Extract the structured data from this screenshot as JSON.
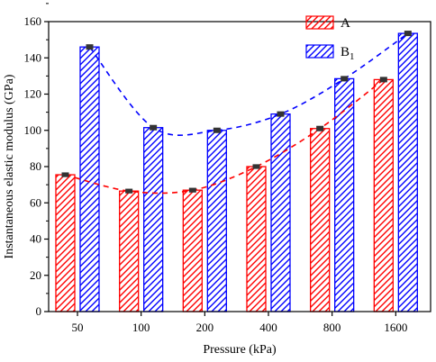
{
  "chart_data": {
    "type": "bar",
    "categories": [
      "50",
      "100",
      "200",
      "400",
      "800",
      "1600"
    ],
    "xlabel": "Pressure (kPa)",
    "ylabel": "Instantaneous elastic modulus (GPa)",
    "ylim": [
      0,
      160
    ],
    "yticks": [
      "0",
      "20",
      "40",
      "60",
      "80",
      "100",
      "120",
      "140",
      "160"
    ],
    "grid": false,
    "legend_position": "top-right",
    "series": [
      {
        "name": "A",
        "values": [
          75.5,
          66.5,
          67.0,
          80.0,
          101.0,
          128.0
        ],
        "errors": [
          0.8,
          0.8,
          0.8,
          0.8,
          1.0,
          1.0
        ],
        "color": "#ff0000",
        "hatch": "diagonal",
        "trend": "dashed"
      },
      {
        "name": "B",
        "subscript": "1",
        "values": [
          146.0,
          101.5,
          100.0,
          109.0,
          128.5,
          153.5
        ],
        "errors": [
          1.0,
          1.0,
          1.0,
          1.0,
          1.0,
          1.0
        ],
        "color": "#0000ff",
        "hatch": "diagonal",
        "trend": "dashed"
      }
    ]
  }
}
